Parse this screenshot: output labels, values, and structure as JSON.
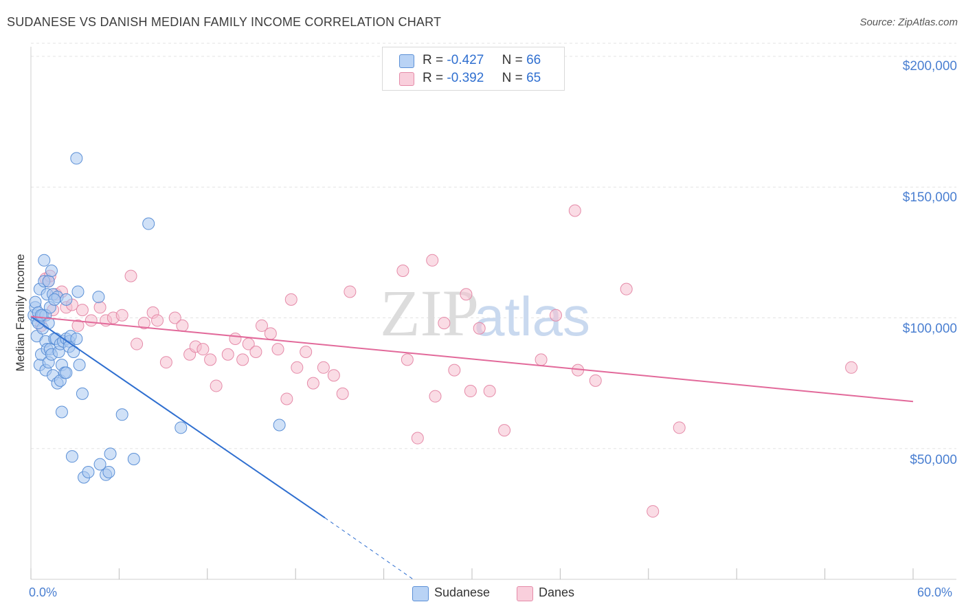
{
  "title": "SUDANESE VS DANISH MEDIAN FAMILY INCOME CORRELATION CHART",
  "source": "Source: ZipAtlas.com",
  "watermark": {
    "zip": "ZIP",
    "atlas": "atlas"
  },
  "legend": {
    "rows": [
      {
        "r_label": "R =",
        "r_value": "-0.427",
        "n_label": "N =",
        "n_value": "66"
      },
      {
        "r_label": "R =",
        "r_value": "-0.392",
        "n_label": "N =",
        "n_value": "65"
      }
    ],
    "bottom": [
      "Sudanese",
      "Danes"
    ]
  },
  "colors": {
    "sudanese_fill": "#a9c8f0",
    "sudanese_stroke": "#5a8fd6",
    "sudanese_line": "#2f6fd0",
    "danes_fill": "#f6c0d0",
    "danes_stroke": "#e58aa8",
    "danes_line": "#e2699a",
    "tick_text": "#4a7fd1",
    "grid": "#e3e3e3"
  },
  "chart_data": {
    "type": "scatter",
    "title": "SUDANESE VS DANISH MEDIAN FAMILY INCOME CORRELATION CHART",
    "xlabel": "",
    "ylabel": "Median Family Income",
    "xlim": [
      0,
      60
    ],
    "ylim": [
      0,
      205000
    ],
    "x_tick_labels": [
      "0.0%",
      "60.0%"
    ],
    "y_ticks": [
      50000,
      100000,
      150000,
      200000
    ],
    "y_tick_labels": [
      "$50,000",
      "$100,000",
      "$150,000",
      "$200,000"
    ],
    "series": [
      {
        "name": "Sudanese",
        "r": -0.427,
        "n": 66,
        "trend": {
          "x0": 0,
          "y0": 100500,
          "x1": 20,
          "y1": 23500,
          "dashed_to_x": 26,
          "dashed_to_y": 0
        },
        "points": [
          [
            0.2,
            101000
          ],
          [
            0.3,
            104000
          ],
          [
            0.3,
            106000
          ],
          [
            0.4,
            99000
          ],
          [
            0.4,
            93000
          ],
          [
            0.5,
            102000
          ],
          [
            0.6,
            111000
          ],
          [
            0.6,
            82000
          ],
          [
            0.7,
            86000
          ],
          [
            0.8,
            101000
          ],
          [
            0.8,
            96000
          ],
          [
            0.9,
            114000
          ],
          [
            0.9,
            122000
          ],
          [
            1.0,
            101000
          ],
          [
            1.0,
            91000
          ],
          [
            1.0,
            80000
          ],
          [
            1.1,
            109000
          ],
          [
            1.1,
            88000
          ],
          [
            1.2,
            98000
          ],
          [
            1.2,
            114000
          ],
          [
            1.2,
            83000
          ],
          [
            1.3,
            104000
          ],
          [
            1.3,
            88000
          ],
          [
            1.4,
            118000
          ],
          [
            1.4,
            86000
          ],
          [
            1.5,
            109000
          ],
          [
            1.5,
            78000
          ],
          [
            1.6,
            92000
          ],
          [
            1.7,
            92000
          ],
          [
            1.8,
            75000
          ],
          [
            1.8,
            108000
          ],
          [
            1.9,
            87000
          ],
          [
            2.0,
            90000
          ],
          [
            2.0,
            76000
          ],
          [
            2.1,
            82000
          ],
          [
            2.1,
            64000
          ],
          [
            2.2,
            91000
          ],
          [
            2.3,
            79000
          ],
          [
            2.4,
            79000
          ],
          [
            2.4,
            92000
          ],
          [
            2.4,
            107000
          ],
          [
            2.6,
            91000
          ],
          [
            2.6,
            89000
          ],
          [
            2.7,
            93000
          ],
          [
            2.8,
            47000
          ],
          [
            2.9,
            87000
          ],
          [
            3.1,
            92000
          ],
          [
            3.1,
            161000
          ],
          [
            3.2,
            110000
          ],
          [
            3.3,
            82000
          ],
          [
            3.5,
            71000
          ],
          [
            3.6,
            39000
          ],
          [
            3.9,
            41000
          ],
          [
            4.6,
            108000
          ],
          [
            4.7,
            44000
          ],
          [
            5.1,
            40000
          ],
          [
            5.3,
            41000
          ],
          [
            5.4,
            48000
          ],
          [
            6.2,
            63000
          ],
          [
            7.0,
            46000
          ],
          [
            8.0,
            136000
          ],
          [
            10.2,
            58000
          ],
          [
            16.9,
            59000
          ],
          [
            0.5,
            98000
          ],
          [
            0.7,
            101000
          ],
          [
            1.6,
            107000
          ]
        ]
      },
      {
        "name": "Danes",
        "r": -0.392,
        "n": 65,
        "trend": {
          "x0": 0,
          "y0": 100500,
          "x1": 60,
          "y1": 68000
        },
        "points": [
          [
            0.7,
            97000
          ],
          [
            1.0,
            115000
          ],
          [
            1.2,
            114000
          ],
          [
            1.3,
            116000
          ],
          [
            1.5,
            103000
          ],
          [
            1.7,
            109000
          ],
          [
            2.1,
            110000
          ],
          [
            2.4,
            104000
          ],
          [
            2.8,
            105000
          ],
          [
            3.2,
            97000
          ],
          [
            3.5,
            103000
          ],
          [
            4.1,
            99000
          ],
          [
            4.7,
            104000
          ],
          [
            5.1,
            99000
          ],
          [
            5.6,
            100000
          ],
          [
            6.2,
            101000
          ],
          [
            6.8,
            116000
          ],
          [
            7.2,
            90000
          ],
          [
            7.7,
            98000
          ],
          [
            8.3,
            102000
          ],
          [
            8.6,
            99000
          ],
          [
            9.2,
            83000
          ],
          [
            9.8,
            100000
          ],
          [
            10.3,
            97000
          ],
          [
            10.8,
            86000
          ],
          [
            11.2,
            89000
          ],
          [
            11.7,
            88000
          ],
          [
            12.2,
            84000
          ],
          [
            12.6,
            74000
          ],
          [
            13.4,
            86000
          ],
          [
            13.9,
            92000
          ],
          [
            14.4,
            84000
          ],
          [
            14.8,
            90000
          ],
          [
            15.3,
            87000
          ],
          [
            15.7,
            97000
          ],
          [
            16.3,
            94000
          ],
          [
            16.8,
            88000
          ],
          [
            17.4,
            69000
          ],
          [
            17.7,
            107000
          ],
          [
            18.1,
            81000
          ],
          [
            18.7,
            87000
          ],
          [
            19.2,
            75000
          ],
          [
            19.9,
            81000
          ],
          [
            20.6,
            78000
          ],
          [
            21.2,
            71000
          ],
          [
            21.7,
            110000
          ],
          [
            25.6,
            84000
          ],
          [
            25.3,
            118000
          ],
          [
            26.3,
            54000
          ],
          [
            27.3,
            122000
          ],
          [
            27.5,
            70000
          ],
          [
            28.1,
            98000
          ],
          [
            28.8,
            80000
          ],
          [
            29.6,
            109000
          ],
          [
            29.9,
            72000
          ],
          [
            30.5,
            96000
          ],
          [
            31.2,
            72000
          ],
          [
            32.2,
            57000
          ],
          [
            34.7,
            84000
          ],
          [
            35.7,
            101000
          ],
          [
            37.2,
            80000
          ],
          [
            38.4,
            76000
          ],
          [
            40.5,
            111000
          ],
          [
            44.1,
            58000
          ],
          [
            55.8,
            81000
          ]
        ]
      },
      {
        "name": "Danes-outliers",
        "points": [
          [
            37.0,
            141000
          ],
          [
            42.3,
            26000
          ]
        ]
      }
    ]
  }
}
